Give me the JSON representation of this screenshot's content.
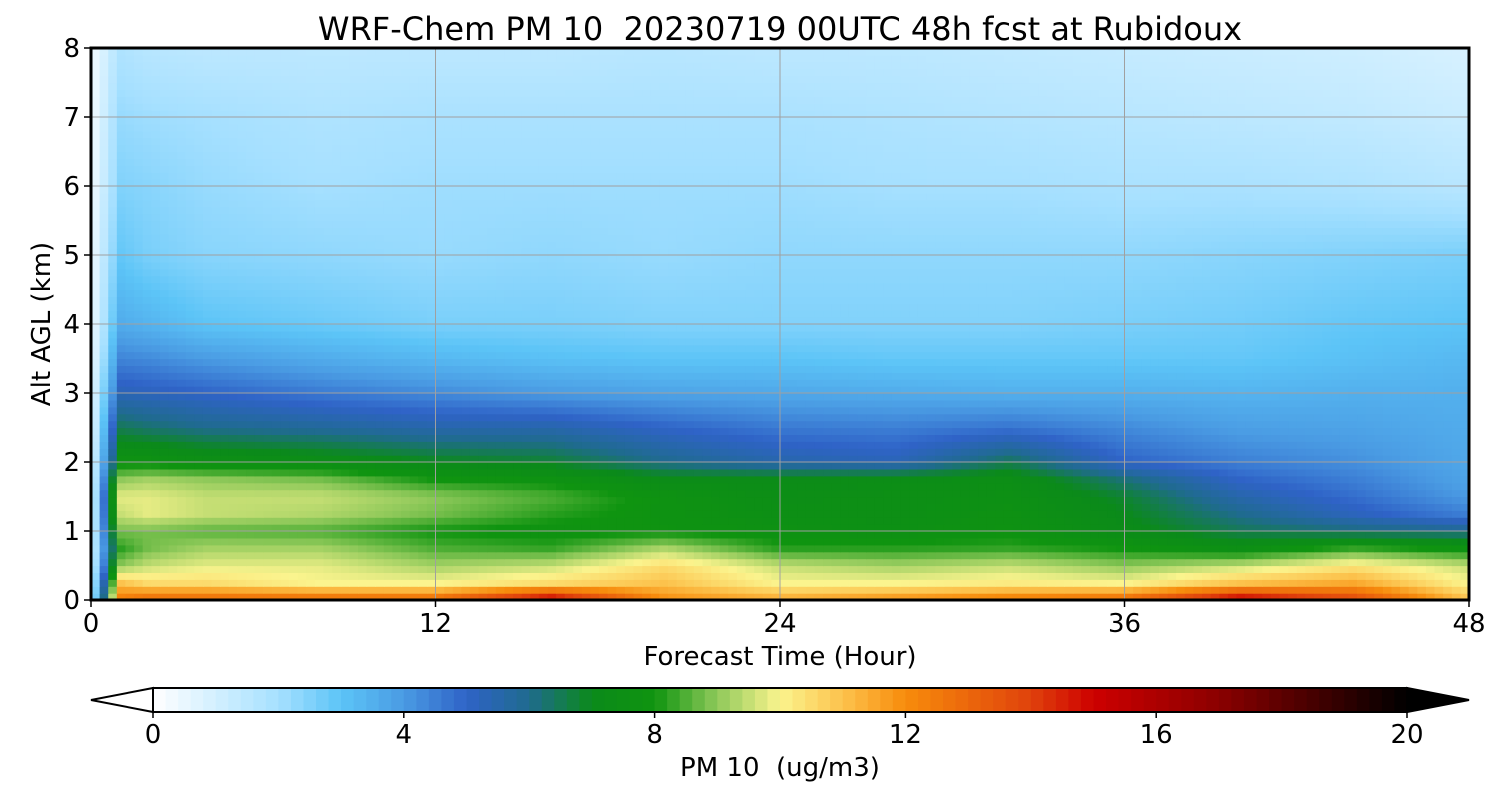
{
  "chart_data": {
    "type": "heatmap",
    "title": "WRF-Chem PM 10  20230719 00UTC 48h fcst at Rubidoux",
    "xlabel": "Forecast Time (Hour)",
    "ylabel": "Alt AGL (km)",
    "xlim": [
      0,
      48
    ],
    "ylim": [
      0,
      8
    ],
    "x_ticks": [
      0,
      12,
      24,
      36,
      48
    ],
    "y_ticks": [
      0,
      1,
      2,
      3,
      4,
      5,
      6,
      7,
      8
    ],
    "grid": true,
    "colorbar": {
      "label": "PM 10  (ug/m3)",
      "min": 0,
      "max": 20,
      "ticks": [
        0,
        4,
        8,
        12,
        16,
        20
      ],
      "extend": "both",
      "orientation": "horizontal",
      "placement": "bottom",
      "color_stops": [
        {
          "value": 0,
          "color": "#ffffff"
        },
        {
          "value": 2,
          "color": "#a6e0ff"
        },
        {
          "value": 3,
          "color": "#5cc4f7"
        },
        {
          "value": 4,
          "color": "#4a9be3"
        },
        {
          "value": 5,
          "color": "#2f63c7"
        },
        {
          "value": 6,
          "color": "#1f6b8e"
        },
        {
          "value": 7,
          "color": "#0b8a1a"
        },
        {
          "value": 8,
          "color": "#0f9410"
        },
        {
          "value": 9,
          "color": "#8fc95a"
        },
        {
          "value": 10,
          "color": "#fbf48e"
        },
        {
          "value": 11,
          "color": "#fcc24c"
        },
        {
          "value": 12,
          "color": "#f78c0c"
        },
        {
          "value": 14,
          "color": "#e0420c"
        },
        {
          "value": 15,
          "color": "#cd0000"
        },
        {
          "value": 17,
          "color": "#8b0000"
        },
        {
          "value": 20,
          "color": "#000000"
        }
      ]
    },
    "x": [
      0,
      1,
      2,
      4,
      8,
      12,
      16,
      20,
      24,
      28,
      32,
      36,
      40,
      44,
      48
    ],
    "y": [
      0,
      0.25,
      0.5,
      0.75,
      1,
      1.25,
      1.5,
      1.75,
      2,
      2.5,
      3,
      3.5,
      4,
      5,
      6,
      7,
      8
    ],
    "z": [
      [
        1.0,
        12.5,
        13.0,
        13.0,
        13.0,
        13.0,
        15.5,
        12.0,
        11.5,
        12.0,
        12.5,
        13.0,
        15.5,
        14.0,
        11.0
      ],
      [
        0.9,
        11.0,
        10.5,
        10.5,
        10.0,
        10.0,
        10.5,
        11.0,
        10.0,
        10.0,
        10.2,
        10.0,
        11.0,
        11.5,
        10.0
      ],
      [
        0.8,
        9.0,
        9.5,
        9.8,
        9.8,
        9.2,
        9.5,
        10.5,
        9.5,
        9.2,
        9.5,
        9.0,
        9.5,
        10.3,
        9.5
      ],
      [
        0.7,
        8.2,
        8.8,
        9.2,
        9.2,
        8.5,
        8.3,
        9.3,
        8.2,
        8.2,
        8.3,
        8.0,
        7.5,
        8.3,
        7.8
      ],
      [
        0.7,
        8.8,
        8.8,
        8.6,
        8.5,
        8.0,
        7.8,
        7.9,
        7.7,
        7.6,
        7.8,
        7.2,
        6.5,
        6.2,
        6.0
      ],
      [
        0.6,
        9.5,
        9.8,
        9.5,
        9.3,
        8.8,
        8.2,
        7.8,
        7.5,
        7.5,
        7.7,
        7.0,
        6.0,
        5.2,
        4.5
      ],
      [
        0.6,
        9.8,
        9.8,
        9.5,
        9.5,
        9.0,
        8.5,
        7.8,
        7.4,
        7.5,
        7.6,
        6.8,
        5.5,
        4.8,
        4.0
      ],
      [
        0.5,
        9.0,
        9.2,
        9.0,
        8.8,
        8.0,
        7.8,
        7.2,
        7.2,
        7.3,
        7.4,
        6.2,
        5.0,
        4.5,
        3.8
      ],
      [
        0.5,
        7.8,
        7.8,
        7.6,
        7.4,
        7.0,
        6.8,
        6.0,
        5.5,
        5.3,
        6.5,
        5.0,
        4.5,
        4.2,
        3.7
      ],
      [
        0.4,
        6.5,
        6.3,
        6.0,
        5.8,
        5.5,
        5.5,
        5.0,
        4.6,
        4.5,
        4.7,
        4.3,
        3.9,
        3.8,
        3.6
      ],
      [
        0.4,
        5.3,
        5.2,
        5.0,
        4.6,
        4.3,
        4.0,
        3.8,
        3.7,
        3.6,
        3.5,
        3.5,
        3.4,
        3.5,
        3.5
      ],
      [
        0.3,
        4.4,
        4.3,
        4.0,
        3.6,
        3.3,
        3.1,
        3.0,
        3.0,
        2.9,
        2.9,
        2.9,
        2.9,
        3.1,
        3.3
      ],
      [
        0.3,
        3.6,
        3.4,
        3.0,
        2.8,
        2.6,
        2.6,
        2.5,
        2.5,
        2.5,
        2.5,
        2.6,
        2.7,
        2.9,
        3.0
      ],
      [
        0.3,
        2.9,
        2.6,
        2.4,
        2.3,
        2.2,
        2.3,
        2.2,
        2.3,
        2.3,
        2.3,
        2.3,
        2.4,
        2.5,
        2.6
      ],
      [
        0.2,
        2.5,
        2.4,
        2.2,
        2.0,
        2.1,
        2.1,
        2.1,
        2.1,
        2.0,
        2.0,
        1.9,
        1.9,
        1.8,
        1.6
      ],
      [
        0.2,
        2.2,
        2.1,
        2.0,
        1.8,
        1.9,
        1.9,
        1.9,
        1.9,
        1.8,
        1.7,
        1.6,
        1.5,
        1.4,
        1.2
      ],
      [
        0.2,
        1.8,
        1.6,
        1.5,
        1.5,
        1.5,
        1.5,
        1.6,
        1.5,
        1.5,
        1.4,
        1.3,
        1.2,
        1.1,
        0.9
      ]
    ]
  }
}
